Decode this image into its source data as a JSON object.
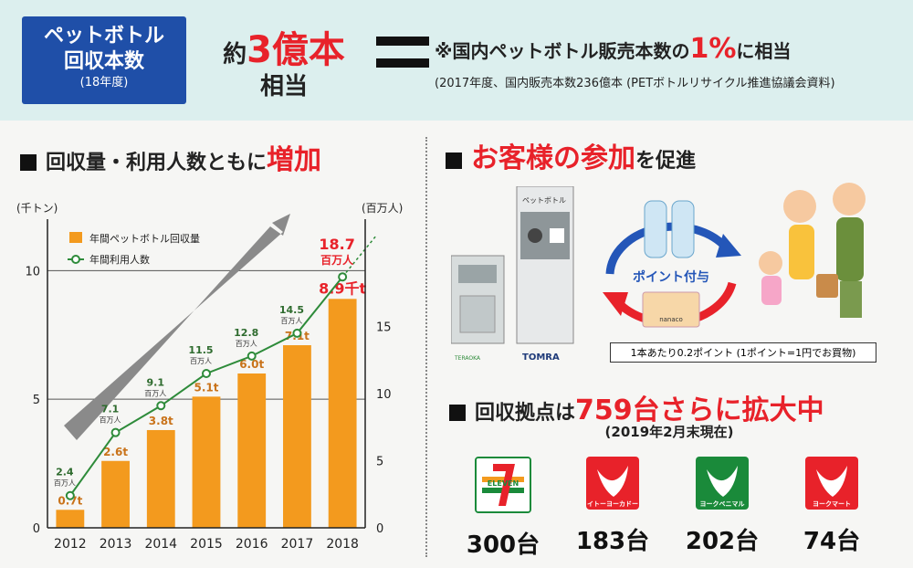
{
  "header": {
    "badge_line1": "ペットボトル",
    "badge_line2": "回収本数",
    "badge_line3": "(18年度)",
    "approx": "約",
    "amount": "3億本",
    "equivalent": "相当",
    "note_main_prefix": "※国内ペットボトル販売本数の",
    "note_main_pct": "1%",
    "note_main_suffix": "に相当",
    "note_source": "(2017年度、国内販売本数236億本 (PETボトルリサイクル推進協議会資料)"
  },
  "left_section": {
    "title_prefix": "回収量・利用人数ともに",
    "title_highlight": "増加"
  },
  "chart_data": {
    "type": "bar",
    "categories": [
      "2012",
      "2013",
      "2014",
      "2015",
      "2016",
      "2017",
      "2018"
    ],
    "left_axis_label": "(千トン)",
    "right_axis_label": "(百万人)",
    "left_ylim": [
      0,
      12
    ],
    "left_ticks": [
      "0",
      "5",
      "10"
    ],
    "right_ylim": [
      0,
      23
    ],
    "right_ticks": [
      "0",
      "5",
      "10",
      "15"
    ],
    "grid": true,
    "legend_position": "top-left",
    "series": [
      {
        "name": "年間ペットボトル回収量",
        "kind": "bar",
        "axis": "left",
        "color": "#f39a1e",
        "values": [
          0.7,
          2.6,
          3.8,
          5.1,
          6.0,
          7.1,
          8.9
        ],
        "labels": [
          "0.7t",
          "2.6t",
          "3.8t",
          "5.1t",
          "6.0t",
          "7.1t",
          "8.9千t"
        ]
      },
      {
        "name": "年間利用人数",
        "kind": "line",
        "axis": "right",
        "color": "#2e8b3a",
        "values": [
          2.4,
          7.1,
          9.1,
          11.5,
          12.8,
          14.5,
          18.7
        ],
        "labels": [
          "2.4",
          "7.1",
          "9.1",
          "11.5",
          "12.8",
          "14.5",
          "18.7"
        ],
        "unit_label": "百万人"
      }
    ]
  },
  "right_section": {
    "title_highlight": "お客様の参加",
    "title_suffix": "を促進",
    "machine_label": "ペットボトル",
    "brand_tomra": "TOMRA",
    "brand_teraoka": "TERAOKA",
    "point_label": "ポイント付与",
    "card_label": "nanaco",
    "point_note": "1本あたり0.2ポイント (1ポイント=1円でお買物)"
  },
  "stores_section": {
    "title_prefix": "回収拠点は",
    "title_number": "759台",
    "title_suffix": "さらに拡大中",
    "as_of": "(2019年2月末現在)",
    "stores": [
      {
        "logo": "ELEVEN",
        "count": "300台",
        "color": "#1a8a3a"
      },
      {
        "logo": "イトーヨーカドー",
        "count": "183台",
        "color": "#e8222a"
      },
      {
        "logo": "ヨークベニマル",
        "count": "202台",
        "color": "#1a8a3a"
      },
      {
        "logo": "ヨークマート",
        "count": "74台",
        "color": "#e8222a"
      }
    ]
  }
}
